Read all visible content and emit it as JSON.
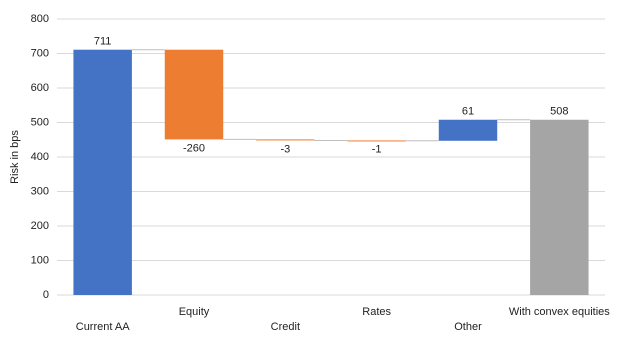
{
  "chart_data": {
    "type": "waterfall",
    "y_label": "Risk in bps",
    "categories": [
      "Current AA",
      "Equity",
      "Credit",
      "Rates",
      "Other",
      "With convex equities"
    ],
    "values": [
      711,
      -260,
      -3,
      -1,
      61,
      508
    ],
    "colors": [
      "#4472c4",
      "#ed7d31",
      "#ed7d31",
      "#ed7d31",
      "#4472c4",
      "#a5a5a5"
    ],
    "ylim": [
      0,
      800
    ],
    "yticks": [
      0,
      100,
      200,
      300,
      400,
      500,
      600,
      700,
      800
    ],
    "grid": true
  }
}
